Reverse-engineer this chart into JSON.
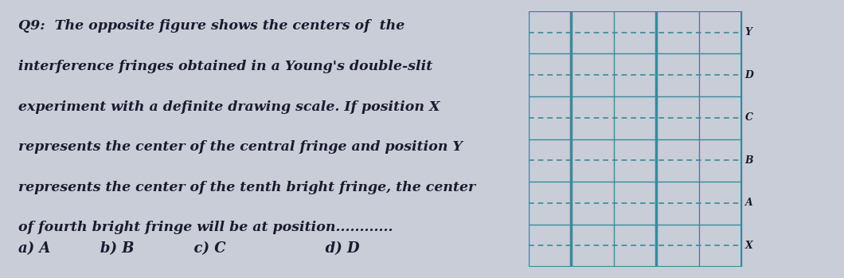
{
  "question_number": "Q9:",
  "line1": "Q9:  The opposite figure shows the centers of  the",
  "line2": "interference fringes obtained in a Young's double-slit",
  "line3": "experiment with a definite drawing scale. If position X",
  "line4": "represents the center of the central fringe and position Y",
  "line5": "represents the center of the tenth bright fringe, the center",
  "line6": "of fourth bright fringe will be at position............",
  "choices_text": "a) A          b) B            c) C                    d) D",
  "bg_color": "#c8cdd8",
  "text_color": "#1a1a2e",
  "grid_color": "#3a8a9a",
  "label_color": "#1a1a2e",
  "grid_rows": 6,
  "grid_cols": 5,
  "row_labels": [
    "Y",
    "D",
    "C",
    "B",
    "A",
    "X"
  ],
  "slit_col1": 1,
  "slit_col2": 3,
  "fig_width": 10.6,
  "fig_height": 3.49,
  "text_fontsize": 12.5,
  "choices_fontsize": 13.0
}
